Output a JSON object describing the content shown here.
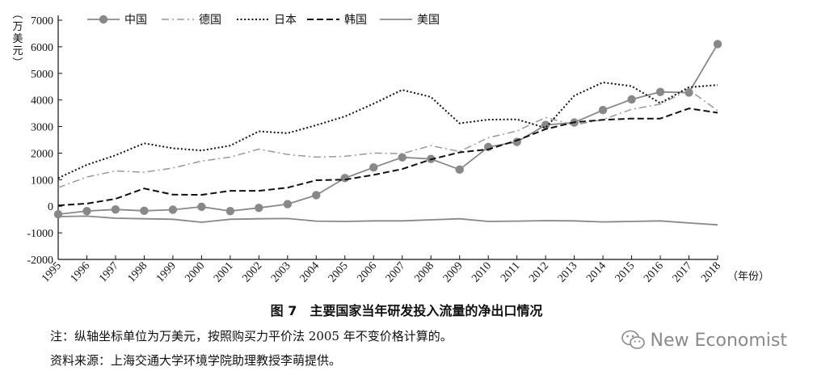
{
  "chart_data": {
    "type": "line",
    "ylabel": "（万美元）",
    "xlabel_suffix": "（年份）",
    "ylim": [
      -2000,
      7000
    ],
    "yticks": [
      -2000,
      -1000,
      0,
      1000,
      2000,
      3000,
      4000,
      5000,
      6000,
      7000
    ],
    "x": [
      "1995",
      "1996",
      "1997",
      "1998",
      "1999",
      "2000",
      "2001",
      "2002",
      "2003",
      "2004",
      "2005",
      "2006",
      "2007",
      "2008",
      "2009",
      "2010",
      "2011",
      "2012",
      "2013",
      "2014",
      "2015",
      "2016",
      "2017",
      "2018"
    ],
    "legend_position": "top",
    "grid": false,
    "series": [
      {
        "name": "中国",
        "style": "solid-marker",
        "color": "#888888",
        "values": [
          -300,
          -180,
          -120,
          -170,
          -130,
          -20,
          -180,
          -60,
          80,
          420,
          1060,
          1460,
          1840,
          1780,
          1380,
          2230,
          2420,
          3060,
          3150,
          3620,
          4020,
          4300,
          4280,
          6100
        ]
      },
      {
        "name": "德国",
        "style": "dashdot",
        "color": "#999999",
        "values": [
          700,
          1100,
          1330,
          1280,
          1440,
          1700,
          1850,
          2150,
          1950,
          1850,
          1880,
          2000,
          1980,
          2280,
          2060,
          2580,
          2830,
          3340,
          3060,
          3260,
          3650,
          3840,
          4380,
          3600
        ]
      },
      {
        "name": "日本",
        "style": "dotted",
        "color": "#111111",
        "values": [
          1060,
          1560,
          1920,
          2370,
          2180,
          2100,
          2280,
          2820,
          2750,
          3050,
          3380,
          3860,
          4380,
          4110,
          3120,
          3260,
          3270,
          2950,
          4160,
          4660,
          4520,
          3880,
          4480,
          4560
        ]
      },
      {
        "name": "韩国",
        "style": "dashed",
        "color": "#111111",
        "values": [
          30,
          100,
          280,
          670,
          440,
          430,
          580,
          580,
          700,
          980,
          1000,
          1180,
          1400,
          1760,
          2030,
          2140,
          2480,
          2900,
          3160,
          3250,
          3300,
          3300,
          3680,
          3520
        ]
      },
      {
        "name": "美国",
        "style": "solid",
        "color": "#888888",
        "values": [
          -390,
          -370,
          -450,
          -470,
          -490,
          -600,
          -490,
          -470,
          -460,
          -560,
          -570,
          -550,
          -550,
          -510,
          -470,
          -570,
          -560,
          -540,
          -550,
          -590,
          -570,
          -550,
          -630,
          -700
        ]
      }
    ]
  },
  "caption": "图 7　主要国家当年研发投入流量的净出口情况",
  "note": "注：纵轴坐标单位为万美元，按照购买力平价法 2005 年不变价格计算的。",
  "source": "资料来源：上海交通大学环境学院助理教授李萌提供。",
  "watermark": {
    "text": "New Economist",
    "icon": "wechat-logo-icon"
  }
}
